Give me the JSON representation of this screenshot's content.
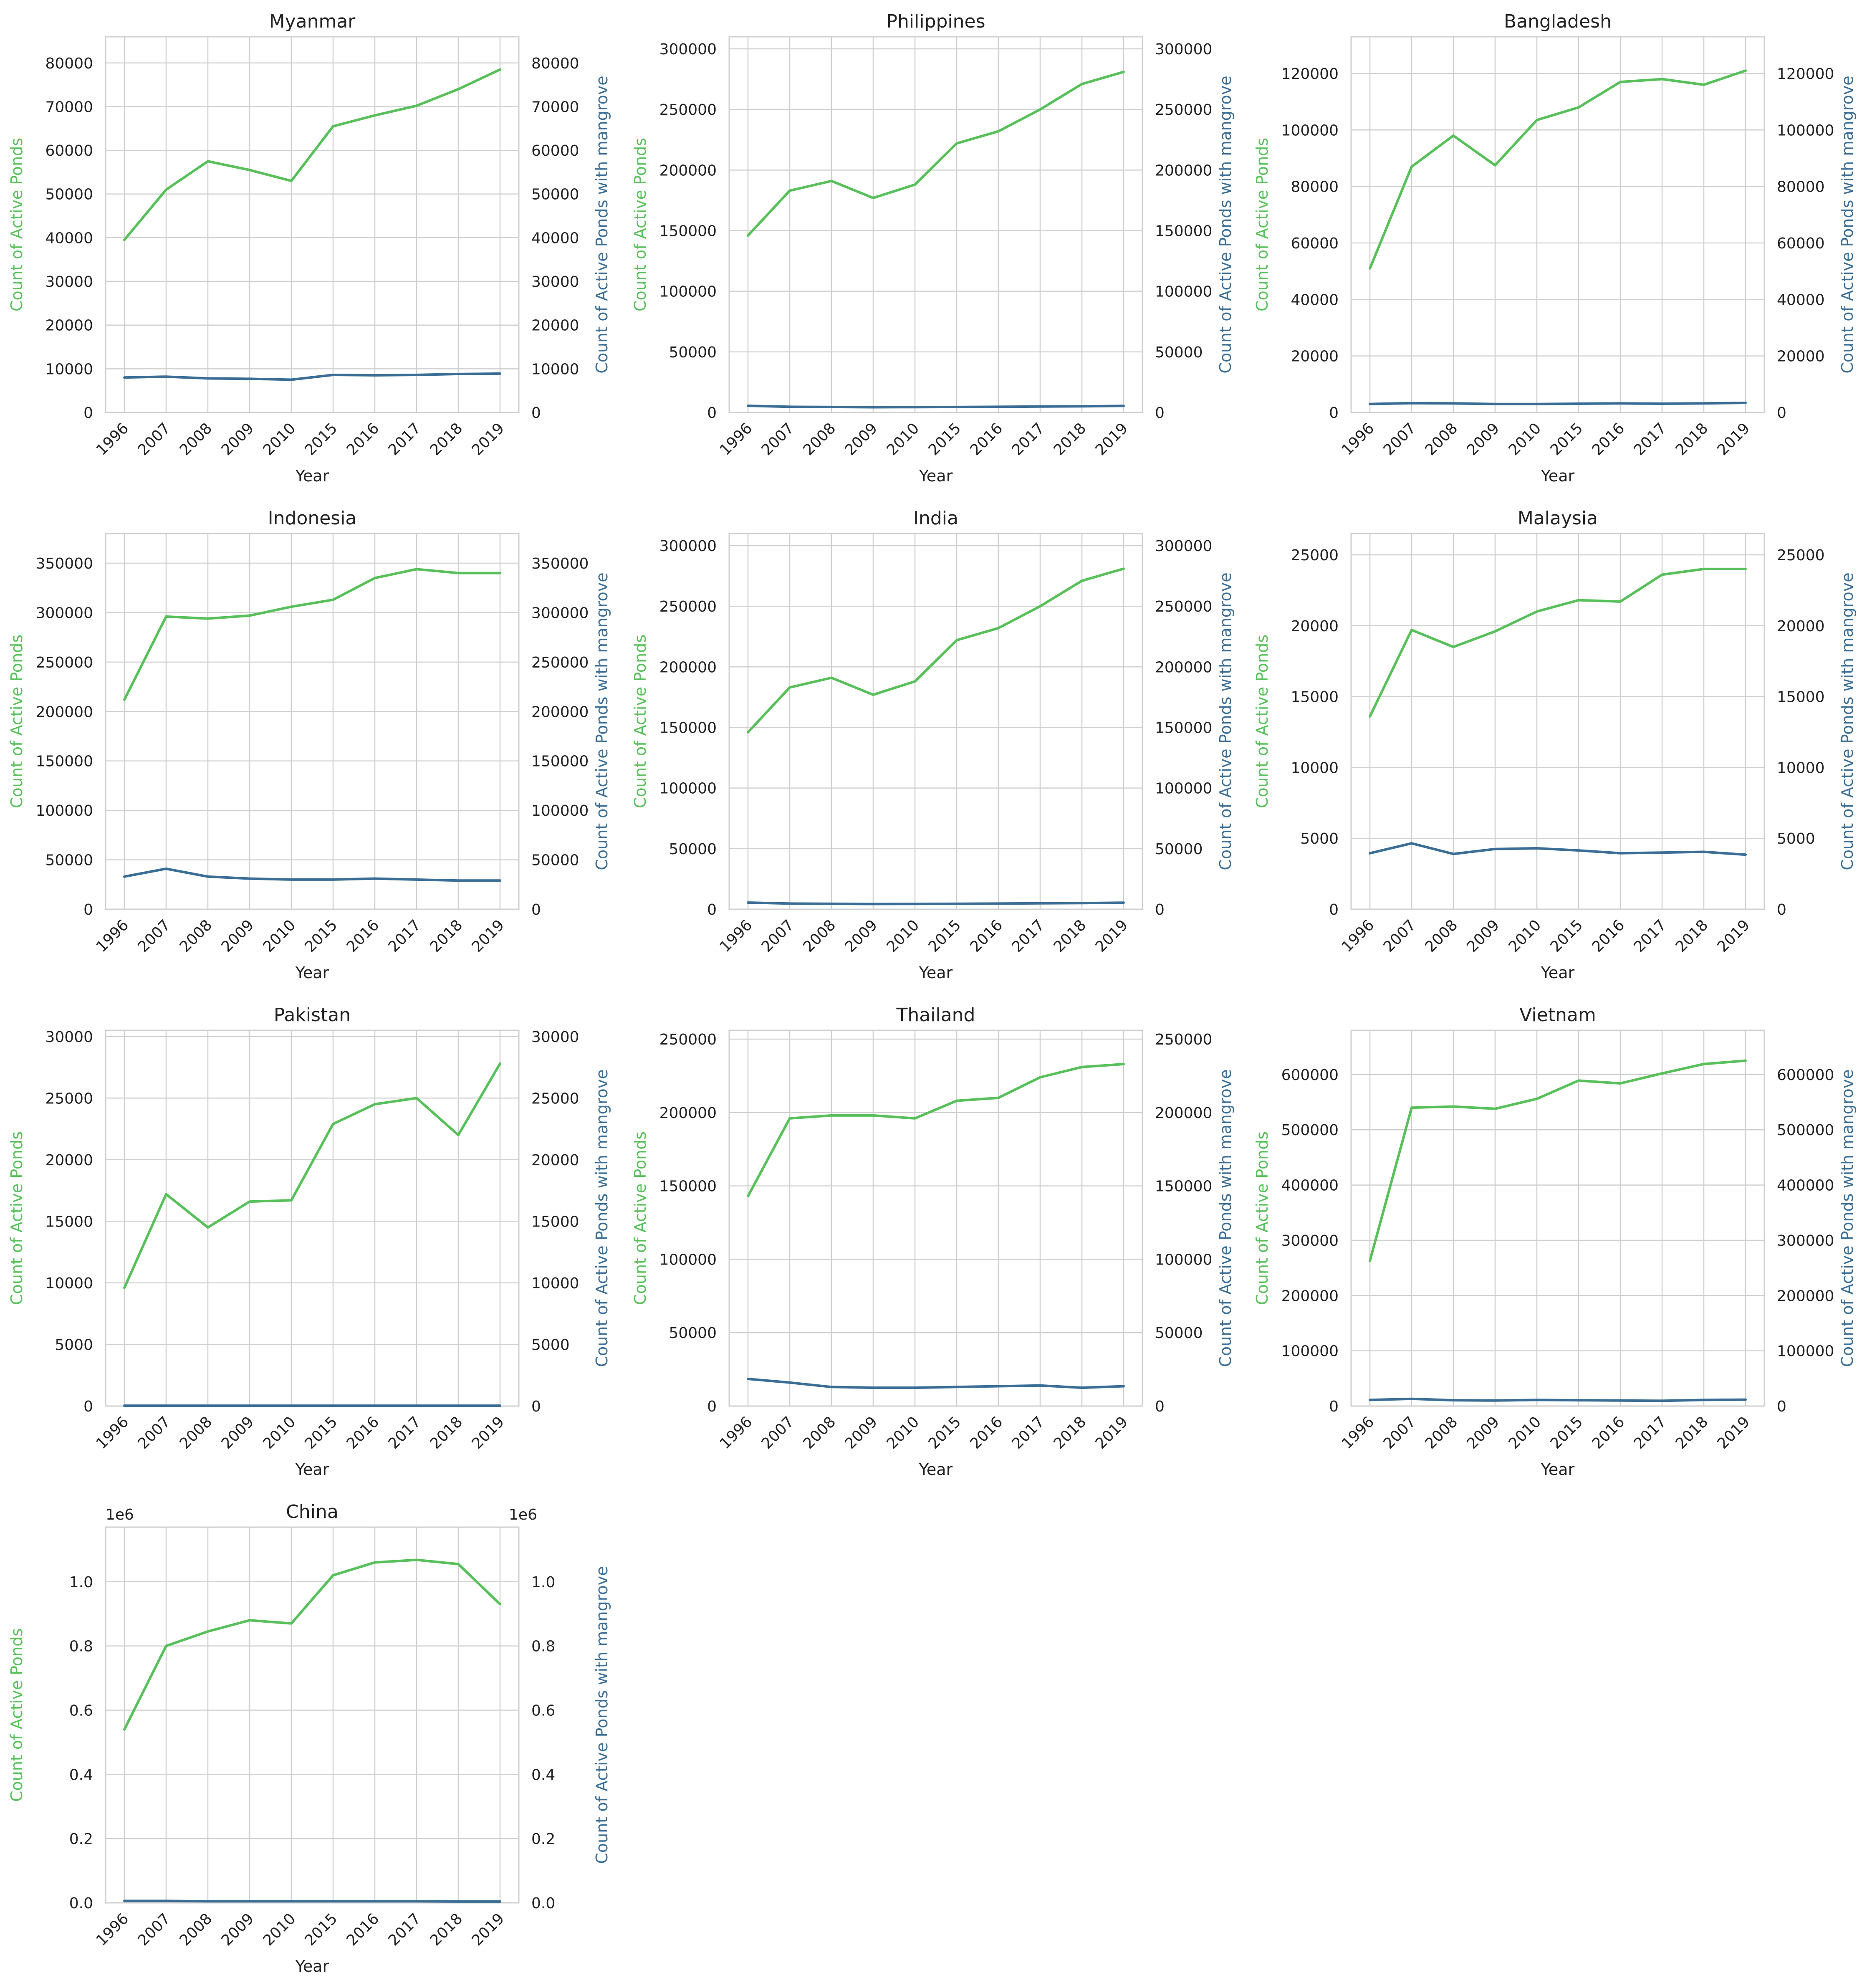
{
  "figure": {
    "layout": "4x3 grid of dual-axis line charts"
  },
  "colors": {
    "active": "#58c05a",
    "mangrove": "#3b6e96",
    "grid": "#cfcfcf",
    "axis": "#333333",
    "text": "#222222"
  },
  "chart_data": [
    {
      "type": "line",
      "title": "Myanmar",
      "x": [
        "1996",
        "2007",
        "2008",
        "2009",
        "2010",
        "2015",
        "2016",
        "2017",
        "2018",
        "2019"
      ],
      "xlabel": "Year",
      "ylabel": "Count of Active Ponds",
      "ylabel2": "Count of Active Ponds with mangrove",
      "ylim": [
        0,
        86000
      ],
      "yticks": [
        0,
        10000,
        20000,
        30000,
        40000,
        50000,
        60000,
        70000,
        80000
      ],
      "offset_text": "",
      "series": [
        {
          "values": [
            39500,
            51000,
            57500,
            55500,
            53000,
            65500,
            68000,
            70200,
            74000,
            78500
          ]
        },
        {
          "values": [
            8000,
            8200,
            7800,
            7700,
            7500,
            8600,
            8500,
            8600,
            8800,
            8900
          ]
        }
      ]
    },
    {
      "type": "line",
      "title": "Philippines",
      "x": [
        "1996",
        "2007",
        "2008",
        "2009",
        "2010",
        "2015",
        "2016",
        "2017",
        "2018",
        "2019"
      ],
      "xlabel": "Year",
      "ylabel": "Count of Active Ponds",
      "ylabel2": "Count of Active Ponds with mangrove",
      "ylim": [
        0,
        310000
      ],
      "yticks": [
        0,
        50000,
        100000,
        150000,
        200000,
        250000,
        300000
      ],
      "offset_text": "",
      "series": [
        {
          "values": [
            146000,
            183000,
            191000,
            177000,
            188000,
            222000,
            232000,
            250000,
            271000,
            281000
          ]
        },
        {
          "values": [
            5500,
            4700,
            4500,
            4300,
            4400,
            4500,
            4700,
            4900,
            5100,
            5400
          ]
        }
      ]
    },
    {
      "type": "line",
      "title": "Bangladesh",
      "x": [
        "1996",
        "2007",
        "2008",
        "2009",
        "2010",
        "2015",
        "2016",
        "2017",
        "2018",
        "2019"
      ],
      "xlabel": "Year",
      "ylabel": "Count of Active Ponds",
      "ylabel2": "Count of Active Ponds with mangrove",
      "ylim": [
        0,
        133000
      ],
      "yticks": [
        0,
        20000,
        40000,
        60000,
        80000,
        100000,
        120000
      ],
      "offset_text": "",
      "series": [
        {
          "values": [
            51000,
            87000,
            98000,
            87500,
            103500,
            108000,
            117000,
            118000,
            116000,
            121000
          ]
        },
        {
          "values": [
            3000,
            3300,
            3200,
            3000,
            3000,
            3100,
            3200,
            3100,
            3200,
            3400
          ]
        }
      ]
    },
    {
      "type": "line",
      "title": "Indonesia",
      "x": [
        "1996",
        "2007",
        "2008",
        "2009",
        "2010",
        "2015",
        "2016",
        "2017",
        "2018",
        "2019"
      ],
      "xlabel": "Year",
      "ylabel": "Count of Active Ponds",
      "ylabel2": "Count of Active Ponds with mangrove",
      "ylim": [
        0,
        380000
      ],
      "yticks": [
        0,
        50000,
        100000,
        150000,
        200000,
        250000,
        300000,
        350000
      ],
      "offset_text": "",
      "series": [
        {
          "values": [
            212000,
            296000,
            294000,
            297000,
            306000,
            313000,
            335000,
            344000,
            340000,
            340000
          ]
        },
        {
          "values": [
            33000,
            41000,
            33000,
            31000,
            30000,
            30000,
            31000,
            30000,
            29000,
            29000
          ]
        }
      ]
    },
    {
      "type": "line",
      "title": "India",
      "x": [
        "1996",
        "2007",
        "2008",
        "2009",
        "2010",
        "2015",
        "2016",
        "2017",
        "2018",
        "2019"
      ],
      "xlabel": "Year",
      "ylabel": "Count of Active Ponds",
      "ylabel2": "Count of Active Ponds with mangrove",
      "ylim": [
        0,
        310000
      ],
      "yticks": [
        0,
        50000,
        100000,
        150000,
        200000,
        250000,
        300000
      ],
      "offset_text": "",
      "series": [
        {
          "values": [
            146000,
            183000,
            191000,
            177000,
            188000,
            222000,
            232000,
            250000,
            271000,
            281000
          ]
        },
        {
          "values": [
            5500,
            4700,
            4500,
            4300,
            4400,
            4500,
            4700,
            4900,
            5100,
            5400
          ]
        }
      ]
    },
    {
      "type": "line",
      "title": "Malaysia",
      "x": [
        "1996",
        "2007",
        "2008",
        "2009",
        "2010",
        "2015",
        "2016",
        "2017",
        "2018",
        "2019"
      ],
      "xlabel": "Year",
      "ylabel": "Count of Active Ponds",
      "ylabel2": "Count of Active Ponds with mangrove",
      "ylim": [
        0,
        26500
      ],
      "yticks": [
        0,
        5000,
        10000,
        15000,
        20000,
        25000
      ],
      "offset_text": "",
      "series": [
        {
          "values": [
            13600,
            19700,
            18500,
            19600,
            21000,
            21800,
            21700,
            23600,
            24000,
            24000
          ]
        },
        {
          "values": [
            3950,
            4650,
            3900,
            4250,
            4300,
            4150,
            3950,
            4000,
            4050,
            3850
          ]
        }
      ]
    },
    {
      "type": "line",
      "title": "Pakistan",
      "x": [
        "1996",
        "2007",
        "2008",
        "2009",
        "2010",
        "2015",
        "2016",
        "2017",
        "2018",
        "2019"
      ],
      "xlabel": "Year",
      "ylabel": "Count of Active Ponds",
      "ylabel2": "Count of Active Ponds with mangrove",
      "ylim": [
        0,
        30500
      ],
      "yticks": [
        0,
        5000,
        10000,
        15000,
        20000,
        25000,
        30000
      ],
      "offset_text": "",
      "series": [
        {
          "values": [
            9600,
            17200,
            14500,
            16600,
            16700,
            22900,
            24500,
            25000,
            22000,
            27800
          ]
        },
        {
          "values": [
            30,
            30,
            30,
            30,
            30,
            30,
            30,
            30,
            30,
            30
          ]
        }
      ]
    },
    {
      "type": "line",
      "title": "Thailand",
      "x": [
        "1996",
        "2007",
        "2008",
        "2009",
        "2010",
        "2015",
        "2016",
        "2017",
        "2018",
        "2019"
      ],
      "xlabel": "Year",
      "ylabel": "Count of Active Ponds",
      "ylabel2": "Count of Active Ponds with mangrove",
      "ylim": [
        0,
        256000
      ],
      "yticks": [
        0,
        50000,
        100000,
        150000,
        200000,
        250000
      ],
      "offset_text": "",
      "series": [
        {
          "values": [
            143000,
            196000,
            198000,
            198000,
            196000,
            208000,
            210000,
            224000,
            231000,
            233000
          ]
        },
        {
          "values": [
            18500,
            16000,
            13000,
            12500,
            12500,
            13000,
            13500,
            14000,
            12500,
            13500
          ]
        }
      ]
    },
    {
      "type": "line",
      "title": "Vietnam",
      "x": [
        "1996",
        "2007",
        "2008",
        "2009",
        "2010",
        "2015",
        "2016",
        "2017",
        "2018",
        "2019"
      ],
      "xlabel": "Year",
      "ylabel": "Count of Active Ponds",
      "ylabel2": "Count of Active Ponds with mangrove",
      "ylim": [
        0,
        680000
      ],
      "yticks": [
        0,
        100000,
        200000,
        300000,
        400000,
        500000,
        600000
      ],
      "offset_text": "",
      "series": [
        {
          "values": [
            263000,
            540000,
            542000,
            538000,
            556000,
            589000,
            584000,
            602000,
            619000,
            625000
          ]
        },
        {
          "values": [
            11000,
            13000,
            10500,
            10000,
            11000,
            10500,
            10000,
            9500,
            11000,
            11500
          ]
        }
      ]
    },
    {
      "type": "line",
      "title": "China",
      "x": [
        "1996",
        "2007",
        "2008",
        "2009",
        "2010",
        "2015",
        "2016",
        "2017",
        "2018",
        "2019"
      ],
      "xlabel": "Year",
      "ylabel": "Count of Active Ponds",
      "ylabel2": "Count of Active Ponds with mangrove",
      "ylim": [
        0,
        1.17
      ],
      "yticks": [
        0.0,
        0.2,
        0.4,
        0.6,
        0.8,
        1.0
      ],
      "offset_text": "1e6",
      "series": [
        {
          "values": [
            0.54,
            0.8,
            0.845,
            0.88,
            0.87,
            1.02,
            1.06,
            1.068,
            1.055,
            0.93
          ]
        },
        {
          "values": [
            0.006,
            0.006,
            0.005,
            0.005,
            0.005,
            0.005,
            0.005,
            0.005,
            0.004,
            0.004
          ]
        }
      ]
    }
  ]
}
